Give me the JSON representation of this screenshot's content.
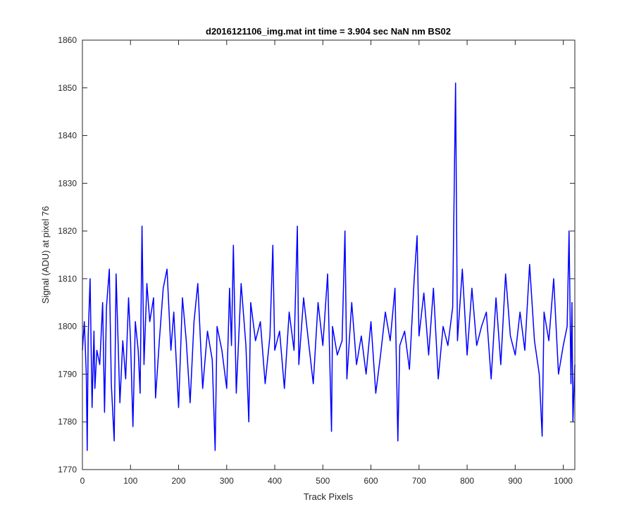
{
  "chart_data": {
    "type": "line",
    "title": "d2016121106_img.mat int time = 3.904 sec  NaN nm BS02",
    "xlabel": "Track Pixels",
    "ylabel": "Signal (ADU) at pixel 76",
    "xlim": [
      0,
      1024
    ],
    "ylim": [
      1770,
      1860
    ],
    "xticks": [
      0,
      100,
      200,
      300,
      400,
      500,
      600,
      700,
      800,
      900,
      1000
    ],
    "yticks": [
      1770,
      1780,
      1790,
      1800,
      1810,
      1820,
      1830,
      1840,
      1850,
      1860
    ],
    "grid": false,
    "series": [
      {
        "color": "#0000ff",
        "x": [
          0,
          4,
          8,
          10,
          12,
          16,
          20,
          24,
          26,
          30,
          36,
          42,
          46,
          50,
          56,
          60,
          66,
          70,
          78,
          84,
          90,
          96,
          100,
          105,
          110,
          116,
          120,
          124,
          128,
          134,
          140,
          148,
          152,
          160,
          168,
          176,
          184,
          190,
          200,
          208,
          216,
          224,
          232,
          240,
          250,
          260,
          270,
          276,
          280,
          290,
          300,
          306,
          310,
          314,
          320,
          330,
          340,
          346,
          350,
          360,
          370,
          380,
          390,
          396,
          400,
          410,
          420,
          430,
          440,
          447,
          450,
          460,
          470,
          480,
          490,
          500,
          510,
          518,
          520,
          530,
          540,
          546,
          550,
          560,
          570,
          580,
          590,
          600,
          610,
          620,
          630,
          640,
          650,
          656,
          660,
          670,
          680,
          690,
          696,
          700,
          710,
          720,
          730,
          740,
          750,
          760,
          770,
          776,
          780,
          790,
          800,
          810,
          820,
          830,
          840,
          850,
          860,
          870,
          880,
          890,
          900,
          910,
          920,
          930,
          940,
          950,
          956,
          960,
          970,
          980,
          990,
          1000,
          1008,
          1012,
          1016,
          1018,
          1020,
          1024
        ],
        "values": [
          1795,
          1801,
          1790,
          1774,
          1798,
          1810,
          1783,
          1799,
          1787,
          1795,
          1792,
          1805,
          1782,
          1804,
          1812,
          1788,
          1776,
          1811,
          1784,
          1797,
          1789,
          1806,
          1797,
          1779,
          1801,
          1795,
          1786,
          1821,
          1792,
          1809,
          1801,
          1806,
          1785,
          1797,
          1808,
          1812,
          1795,
          1803,
          1783,
          1806,
          1797,
          1784,
          1801,
          1809,
          1787,
          1799,
          1793,
          1774,
          1800,
          1795,
          1787,
          1808,
          1796,
          1817,
          1786,
          1809,
          1796,
          1780,
          1805,
          1797,
          1801,
          1788,
          1798,
          1817,
          1795,
          1799,
          1787,
          1803,
          1795,
          1821,
          1792,
          1806,
          1797,
          1788,
          1805,
          1796,
          1811,
          1778,
          1800,
          1794,
          1797,
          1820,
          1789,
          1805,
          1792,
          1798,
          1790,
          1801,
          1786,
          1794,
          1803,
          1797,
          1808,
          1776,
          1796,
          1799,
          1791,
          1810,
          1819,
          1798,
          1807,
          1794,
          1808,
          1789,
          1800,
          1796,
          1804,
          1851,
          1797,
          1812,
          1794,
          1808,
          1796,
          1800,
          1803,
          1789,
          1806,
          1792,
          1811,
          1798,
          1794,
          1803,
          1795,
          1813,
          1797,
          1790,
          1777,
          1803,
          1797,
          1810,
          1790,
          1796,
          1800,
          1820,
          1788,
          1805,
          1780,
          1792
        ]
      }
    ]
  }
}
